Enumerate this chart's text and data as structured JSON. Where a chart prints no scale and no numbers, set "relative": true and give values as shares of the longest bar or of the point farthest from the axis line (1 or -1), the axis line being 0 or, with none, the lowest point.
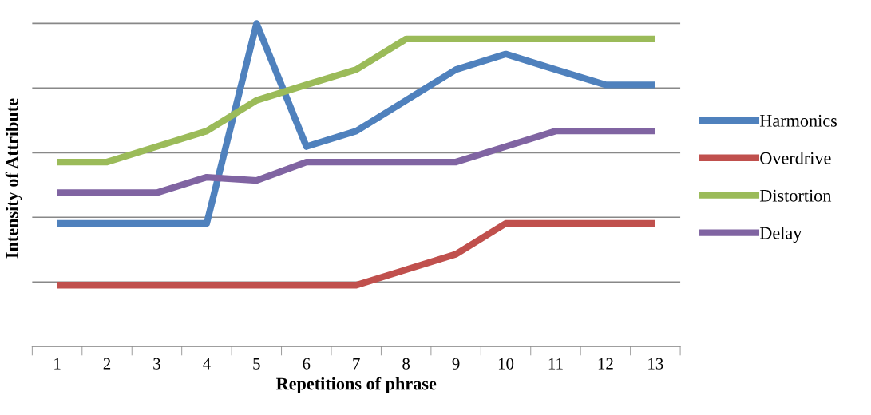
{
  "chart_data": {
    "type": "line",
    "relative": true,
    "xlabel": "Repetitions of phrase",
    "ylabel": "Intensity of Attribute",
    "categories": [
      "1",
      "2",
      "3",
      "4",
      "5",
      "6",
      "7",
      "8",
      "9",
      "10",
      "11",
      "12",
      "13"
    ],
    "series": [
      {
        "name": "Harmonics",
        "color": "#4f81bd",
        "values": [
          0.381,
          0.381,
          0.381,
          0.381,
          1,
          0.619,
          0.667,
          0.762,
          0.857,
          0.905,
          0.857,
          0.81,
          0.81
        ]
      },
      {
        "name": "Overdrive",
        "color": "#c0504d",
        "values": [
          0.19,
          0.19,
          0.19,
          0.19,
          0.19,
          0.19,
          0.19,
          0.238,
          0.286,
          0.381,
          0.381,
          0.381,
          0.381
        ]
      },
      {
        "name": "Distortion",
        "color": "#9bbb59",
        "values": [
          0.571,
          0.571,
          0.619,
          0.667,
          0.762,
          0.81,
          0.857,
          0.952,
          0.952,
          0.952,
          0.952,
          0.952,
          0.952
        ]
      },
      {
        "name": "Delay",
        "color": "#8064a2",
        "values": [
          0.476,
          0.476,
          0.476,
          0.524,
          0.514,
          0.571,
          0.571,
          0.571,
          0.571,
          0.619,
          0.667,
          0.667,
          0.667
        ]
      }
    ],
    "grid": "y",
    "legend": "right",
    "marker": "none",
    "line_style": "solid"
  }
}
